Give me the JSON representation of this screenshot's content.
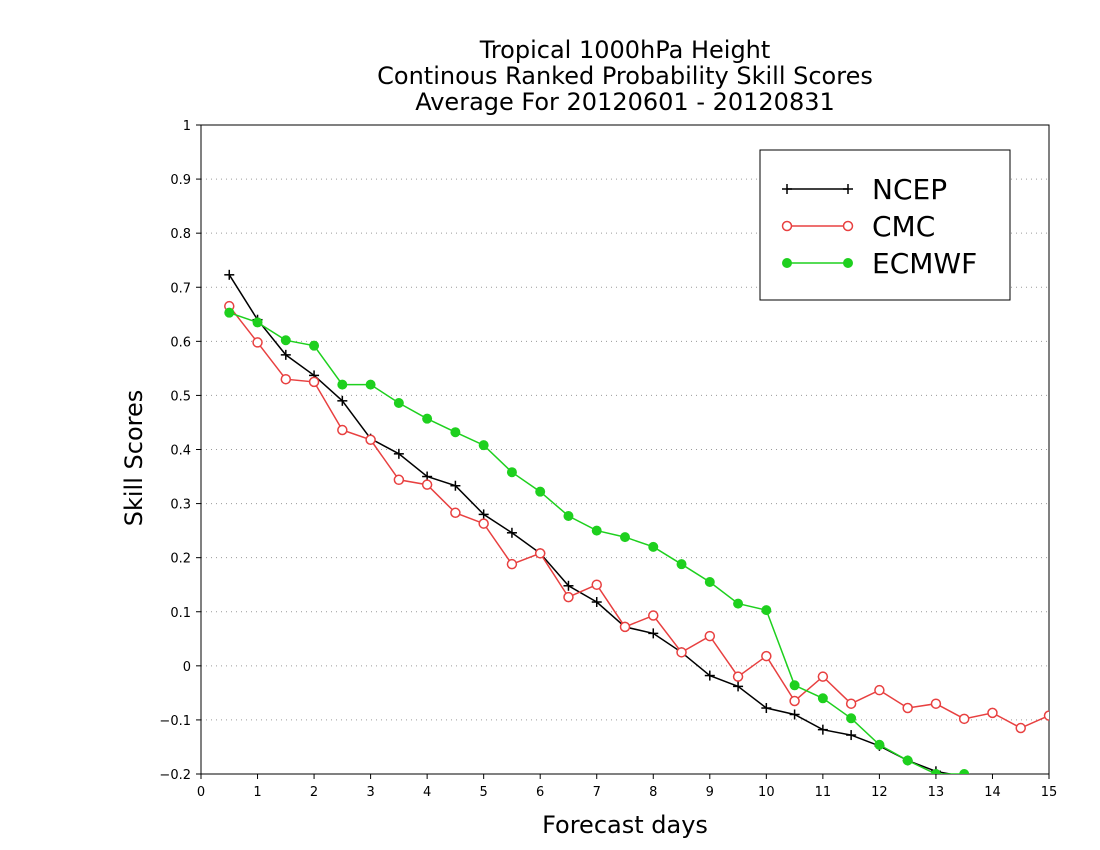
{
  "chart_data": {
    "type": "line",
    "title_lines": [
      "Tropical 1000hPa Height",
      "Continous Ranked Probability Skill Scores",
      "Average For 20120601 - 20120831"
    ],
    "xlabel": "Forecast days",
    "ylabel": "Skill Scores",
    "xlim": [
      0,
      15
    ],
    "ylim": [
      -0.2,
      1
    ],
    "x_ticks": [
      "0",
      "1",
      "2",
      "3",
      "4",
      "5",
      "6",
      "7",
      "8",
      "9",
      "10",
      "11",
      "12",
      "13",
      "14",
      "15"
    ],
    "y_ticks": [
      "−0.2",
      "−0.1",
      "0",
      "0.1",
      "0.2",
      "0.3",
      "0.4",
      "0.5",
      "0.6",
      "0.7",
      "0.8",
      "0.9",
      "1"
    ],
    "grid": "horizontal-dotted",
    "legend_position": "top-right",
    "series": [
      {
        "name": "NCEP",
        "color": "#000000",
        "marker": "plus",
        "x": [
          0.5,
          1,
          1.5,
          2,
          2.5,
          3,
          3.5,
          4,
          4.5,
          5,
          5.5,
          6,
          6.5,
          7,
          7.5,
          8,
          8.5,
          9,
          9.5,
          10,
          10.5,
          11,
          11.5,
          12,
          12.5,
          13,
          13.5
        ],
        "values": [
          0.723,
          0.64,
          0.575,
          0.537,
          0.49,
          0.42,
          0.392,
          0.35,
          0.333,
          0.28,
          0.246,
          0.208,
          0.148,
          0.118,
          0.072,
          0.06,
          0.025,
          -0.018,
          -0.038,
          -0.078,
          -0.09,
          -0.118,
          -0.128,
          -0.148,
          -0.175,
          -0.195,
          -0.205
        ]
      },
      {
        "name": "CMC",
        "color": "#e84040",
        "marker": "open-circle",
        "x": [
          0.5,
          1,
          1.5,
          2,
          2.5,
          3,
          3.5,
          4,
          4.5,
          5,
          5.5,
          6,
          6.5,
          7,
          7.5,
          8,
          8.5,
          9,
          9.5,
          10,
          10.5,
          11,
          11.5,
          12,
          12.5,
          13,
          13.5,
          14,
          14.5,
          15
        ],
        "values": [
          0.665,
          0.598,
          0.53,
          0.525,
          0.436,
          0.418,
          0.344,
          0.335,
          0.283,
          0.263,
          0.188,
          0.208,
          0.127,
          0.15,
          0.072,
          0.093,
          0.025,
          0.055,
          -0.02,
          0.018,
          -0.065,
          -0.02,
          -0.07,
          -0.045,
          -0.078,
          -0.07,
          -0.098,
          -0.087,
          -0.115,
          -0.092
        ]
      },
      {
        "name": "ECMWF",
        "color": "#1ed01e",
        "marker": "filled-circle",
        "x": [
          0.5,
          1,
          1.5,
          2,
          2.5,
          3,
          3.5,
          4,
          4.5,
          5,
          5.5,
          6,
          6.5,
          7,
          7.5,
          8,
          8.5,
          9,
          9.5,
          10,
          10.5,
          11,
          11.5,
          12,
          12.5,
          13,
          13.5
        ],
        "values": [
          0.653,
          0.635,
          0.602,
          0.592,
          0.52,
          0.52,
          0.486,
          0.457,
          0.432,
          0.408,
          0.358,
          0.322,
          0.277,
          0.25,
          0.238,
          0.22,
          0.188,
          0.155,
          0.115,
          0.103,
          -0.036,
          -0.06,
          -0.097,
          -0.146,
          -0.175,
          -0.2,
          -0.2
        ]
      }
    ]
  }
}
